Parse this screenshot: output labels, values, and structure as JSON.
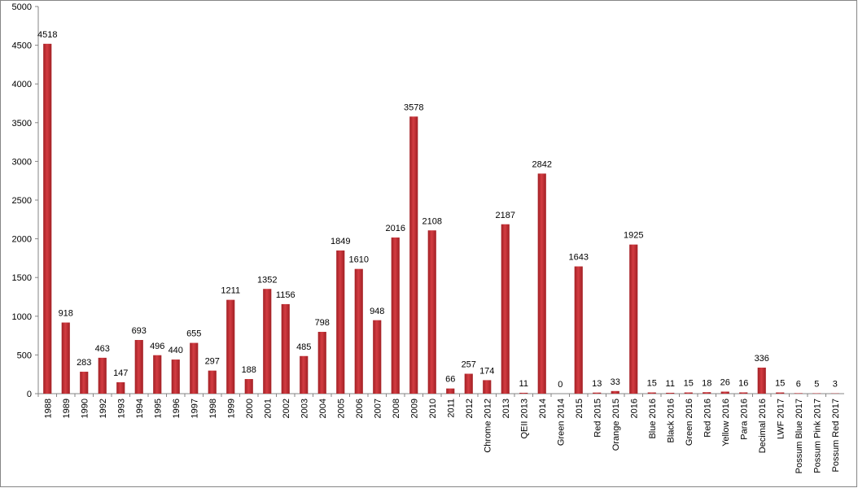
{
  "chart_data": {
    "type": "bar",
    "categories": [
      "1988",
      "1989",
      "1990",
      "1992",
      "1993",
      "1994",
      "1995",
      "1996",
      "1997",
      "1998",
      "1999",
      "2000",
      "2001",
      "2002",
      "2003",
      "2004",
      "2005",
      "2006",
      "2007",
      "2008",
      "2009",
      "2010",
      "2011",
      "2012",
      "Chrome 2012",
      "2013",
      "QEII 2013",
      "2014",
      "Green 2014",
      "2015",
      "Red 2015",
      "Orange 2015",
      "2016",
      "Blue 2016",
      "Black 2016",
      "Green 2016",
      "Red 2016",
      "Yellow 2016",
      "Para 2016",
      "Decimal 2016",
      "LWF 2017",
      "Possum Blue 2017",
      "Possum Pink 2017",
      "Possum Red 2017"
    ],
    "values": [
      4518,
      918,
      283,
      463,
      147,
      693,
      496,
      440,
      655,
      297,
      1211,
      188,
      1352,
      1156,
      485,
      798,
      1849,
      1610,
      948,
      2016,
      3578,
      2108,
      66,
      257,
      174,
      2187,
      11,
      2842,
      0,
      1643,
      13,
      33,
      1925,
      15,
      11,
      15,
      18,
      26,
      16,
      336,
      15,
      6,
      5,
      3
    ],
    "color": "#c0272d",
    "ylim": [
      0,
      5000
    ],
    "yticks": [
      0,
      500,
      1000,
      1500,
      2000,
      2500,
      3000,
      3500,
      4000,
      4500,
      5000
    ],
    "grid": false
  }
}
